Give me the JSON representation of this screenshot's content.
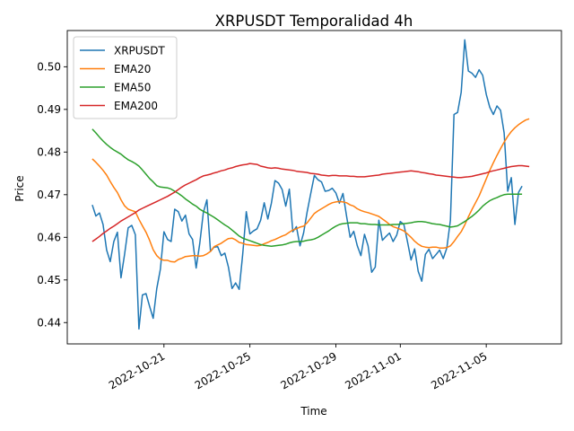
{
  "chart_data": {
    "type": "line",
    "title": "XRPUSDT Temporalidad 4h",
    "xlabel": "Time",
    "ylabel": "Price",
    "x_start": "2022-10-17 16:00",
    "x_step_hours": 4,
    "xlim": [
      "2022-10-16 12:00",
      "2022-11-08 12:00"
    ],
    "ylim": [
      0.435,
      0.5085
    ],
    "x_ticks": [
      "2022-10-21",
      "2022-10-25",
      "2022-10-29",
      "2022-11-01",
      "2022-11-05"
    ],
    "y_ticks": [
      "0.44",
      "0.45",
      "0.46",
      "0.47",
      "0.48",
      "0.49",
      "0.50"
    ],
    "grid": false,
    "legend_position": "top-left",
    "series": [
      {
        "name": "XRPUSDT",
        "color": "#1f77b4",
        "values": [
          0.4676,
          0.465,
          0.4657,
          0.463,
          0.457,
          0.4543,
          0.459,
          0.4612,
          0.4505,
          0.456,
          0.4622,
          0.4628,
          0.4606,
          0.4385,
          0.4465,
          0.4468,
          0.4438,
          0.441,
          0.448,
          0.4525,
          0.4613,
          0.4595,
          0.459,
          0.4666,
          0.466,
          0.4638,
          0.4652,
          0.4608,
          0.4595,
          0.4528,
          0.4585,
          0.4658,
          0.4688,
          0.4567,
          0.4577,
          0.4578,
          0.4557,
          0.4563,
          0.453,
          0.448,
          0.4493,
          0.4478,
          0.456,
          0.466,
          0.4608,
          0.4615,
          0.462,
          0.464,
          0.4681,
          0.4643,
          0.468,
          0.4733,
          0.4727,
          0.4712,
          0.4673,
          0.4713,
          0.4613,
          0.4625,
          0.458,
          0.461,
          0.466,
          0.4703,
          0.4745,
          0.4735,
          0.473,
          0.4708,
          0.471,
          0.4715,
          0.4704,
          0.468,
          0.4703,
          0.465,
          0.46,
          0.4614,
          0.458,
          0.4557,
          0.4607,
          0.458,
          0.4518,
          0.453,
          0.464,
          0.4593,
          0.4602,
          0.461,
          0.459,
          0.4605,
          0.4637,
          0.463,
          0.459,
          0.4547,
          0.4573,
          0.452,
          0.4497,
          0.456,
          0.4572,
          0.455,
          0.456,
          0.457,
          0.455,
          0.4575,
          0.464,
          0.4888,
          0.4893,
          0.494,
          0.5063,
          0.499,
          0.4985,
          0.4975,
          0.4993,
          0.498,
          0.4935,
          0.4905,
          0.4888,
          0.4908,
          0.4898,
          0.4845,
          0.4708,
          0.474,
          0.463,
          0.4705,
          0.472
        ]
      },
      {
        "name": "EMA20",
        "color": "#ff7f0e",
        "values": [
          0.4784,
          0.4776,
          0.4767,
          0.4757,
          0.4746,
          0.4731,
          0.4717,
          0.4705,
          0.4688,
          0.4674,
          0.4666,
          0.4663,
          0.466,
          0.4642,
          0.4627,
          0.4612,
          0.4593,
          0.4571,
          0.4557,
          0.4549,
          0.4546,
          0.4546,
          0.4543,
          0.4542,
          0.4548,
          0.4551,
          0.4555,
          0.4556,
          0.4557,
          0.4557,
          0.4556,
          0.4557,
          0.4561,
          0.4567,
          0.4578,
          0.4582,
          0.4586,
          0.4592,
          0.4597,
          0.4598,
          0.4594,
          0.4588,
          0.4586,
          0.4583,
          0.4582,
          0.4581,
          0.458,
          0.4581,
          0.4585,
          0.4588,
          0.4592,
          0.4595,
          0.4599,
          0.4603,
          0.4606,
          0.4612,
          0.4617,
          0.462,
          0.4624,
          0.4626,
          0.4634,
          0.4645,
          0.4656,
          0.4662,
          0.4667,
          0.4672,
          0.4677,
          0.4681,
          0.4683,
          0.4684,
          0.4683,
          0.4681,
          0.4676,
          0.4673,
          0.4667,
          0.4663,
          0.466,
          0.4658,
          0.4655,
          0.4652,
          0.4649,
          0.4643,
          0.4637,
          0.463,
          0.4625,
          0.4622,
          0.4619,
          0.4615,
          0.4608,
          0.46,
          0.4591,
          0.4584,
          0.4579,
          0.4577,
          0.4576,
          0.4577,
          0.4577,
          0.4575,
          0.4575,
          0.4576,
          0.458,
          0.459,
          0.4602,
          0.4613,
          0.4629,
          0.4648,
          0.4665,
          0.4681,
          0.4697,
          0.4717,
          0.4737,
          0.4757,
          0.4775,
          0.4792,
          0.4808,
          0.4823,
          0.4837,
          0.4848,
          0.4857,
          0.4864,
          0.487,
          0.4875,
          0.4878
        ]
      },
      {
        "name": "EMA50",
        "color": "#2ca02c",
        "values": [
          0.4854,
          0.4845,
          0.4835,
          0.4826,
          0.4818,
          0.4811,
          0.4805,
          0.48,
          0.4795,
          0.4788,
          0.4782,
          0.4778,
          0.4773,
          0.4767,
          0.4758,
          0.4748,
          0.4738,
          0.473,
          0.4721,
          0.4718,
          0.4717,
          0.4716,
          0.4713,
          0.4708,
          0.4703,
          0.4697,
          0.469,
          0.4684,
          0.4678,
          0.4673,
          0.4666,
          0.4661,
          0.4657,
          0.4652,
          0.4647,
          0.4641,
          0.4635,
          0.4629,
          0.4624,
          0.4617,
          0.461,
          0.4603,
          0.4598,
          0.4595,
          0.4592,
          0.4589,
          0.4586,
          0.4583,
          0.4581,
          0.458,
          0.4579,
          0.458,
          0.4581,
          0.4582,
          0.4584,
          0.4587,
          0.4589,
          0.459,
          0.459,
          0.4591,
          0.4593,
          0.4594,
          0.4596,
          0.46,
          0.4605,
          0.461,
          0.4615,
          0.4621,
          0.4626,
          0.463,
          0.4632,
          0.4633,
          0.4634,
          0.4634,
          0.4634,
          0.4632,
          0.4632,
          0.4631,
          0.463,
          0.463,
          0.4629,
          0.4629,
          0.4629,
          0.4629,
          0.463,
          0.463,
          0.4631,
          0.4632,
          0.4633,
          0.4634,
          0.4636,
          0.4637,
          0.4637,
          0.4636,
          0.4634,
          0.4632,
          0.4631,
          0.463,
          0.4628,
          0.4626,
          0.4624,
          0.4625,
          0.4627,
          0.4632,
          0.4637,
          0.4643,
          0.4649,
          0.4656,
          0.4664,
          0.4673,
          0.468,
          0.4686,
          0.469,
          0.4693,
          0.4697,
          0.47,
          0.4701,
          0.4701,
          0.4701,
          0.4701,
          0.4701
        ]
      },
      {
        "name": "EMA200",
        "color": "#d62728",
        "values": [
          0.459,
          0.4596,
          0.4602,
          0.4609,
          0.4615,
          0.4621,
          0.4626,
          0.4632,
          0.4638,
          0.4643,
          0.4648,
          0.4653,
          0.4658,
          0.4664,
          0.4668,
          0.4672,
          0.4676,
          0.468,
          0.4684,
          0.4688,
          0.4692,
          0.4696,
          0.4701,
          0.4706,
          0.4712,
          0.4718,
          0.4723,
          0.4727,
          0.4731,
          0.4735,
          0.474,
          0.4744,
          0.4746,
          0.4748,
          0.4751,
          0.4753,
          0.4756,
          0.4758,
          0.4761,
          0.4763,
          0.4766,
          0.4768,
          0.477,
          0.4771,
          0.4773,
          0.4772,
          0.4771,
          0.4767,
          0.4765,
          0.4763,
          0.4762,
          0.4763,
          0.4762,
          0.476,
          0.4759,
          0.4758,
          0.4757,
          0.4755,
          0.4754,
          0.4753,
          0.4752,
          0.475,
          0.4749,
          0.4748,
          0.4746,
          0.4745,
          0.4744,
          0.4745,
          0.4745,
          0.4744,
          0.4744,
          0.4744,
          0.4743,
          0.4743,
          0.4742,
          0.4742,
          0.4742,
          0.4743,
          0.4744,
          0.4745,
          0.4746,
          0.4748,
          0.4749,
          0.475,
          0.4751,
          0.4752,
          0.4753,
          0.4754,
          0.4755,
          0.4756,
          0.4755,
          0.4754,
          0.4752,
          0.4751,
          0.4749,
          0.4748,
          0.4746,
          0.4745,
          0.4744,
          0.4743,
          0.4742,
          0.4741,
          0.474,
          0.474,
          0.4741,
          0.4742,
          0.4743,
          0.4745,
          0.4747,
          0.4749,
          0.4751,
          0.4754,
          0.4756,
          0.4758,
          0.476,
          0.4762,
          0.4764,
          0.4766,
          0.4767,
          0.4768,
          0.4768,
          0.4767,
          0.4766
        ]
      }
    ]
  }
}
